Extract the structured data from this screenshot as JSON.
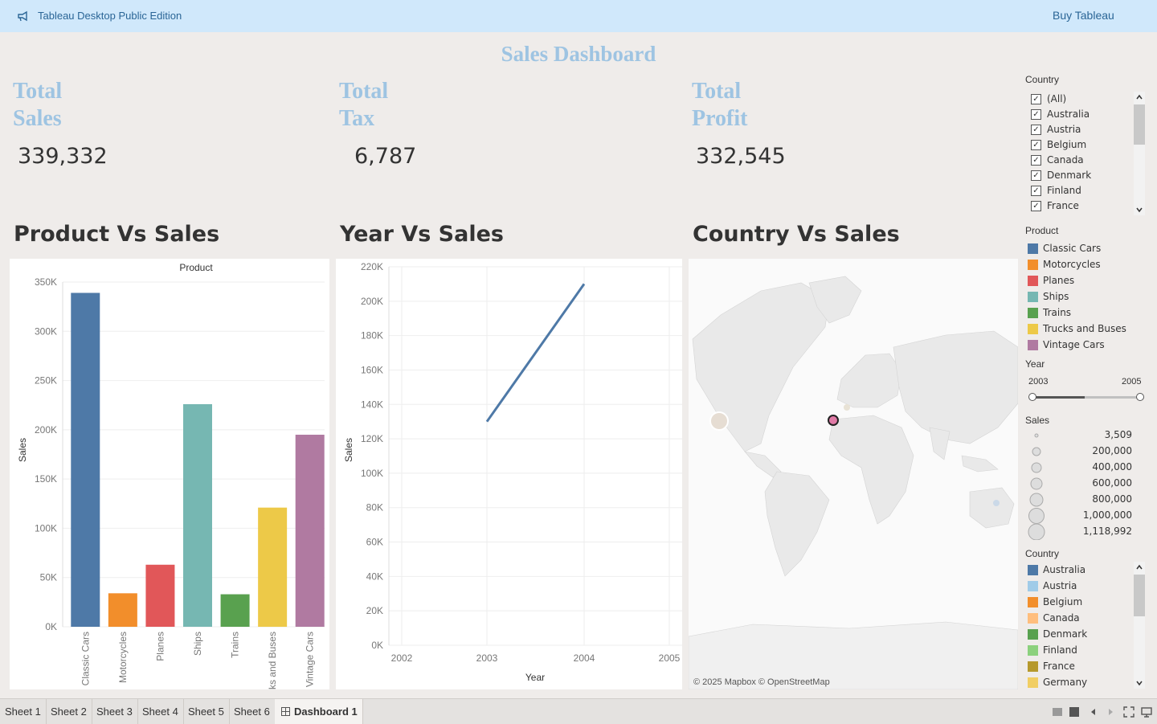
{
  "app": {
    "title": "Tableau Desktop Public Edition",
    "buy_label": "Buy Tableau"
  },
  "dashboard": {
    "title": "Sales Dashboard"
  },
  "kpis": [
    {
      "label_line1": "Total",
      "label_line2": "Sales",
      "value": "339,332"
    },
    {
      "label_line1": "Total",
      "label_line2": "Tax",
      "value": "6,787"
    },
    {
      "label_line1": "Total",
      "label_line2": "Profit",
      "value": "332,545"
    }
  ],
  "sections": {
    "product": "Product Vs Sales",
    "year": "Year Vs Sales",
    "country": "Country Vs Sales"
  },
  "chart_data": [
    {
      "type": "bar",
      "title": "Product",
      "xlabel": "",
      "ylabel": "Sales",
      "ylim": [
        0,
        350000
      ],
      "yticks": [
        "0K",
        "50K",
        "100K",
        "150K",
        "200K",
        "250K",
        "300K",
        "350K"
      ],
      "categories": [
        "Classic Cars",
        "Motorcycles",
        "Planes",
        "Ships",
        "Trains",
        "Trucks and Buses",
        "Vintage Cars"
      ],
      "values": [
        339000,
        34000,
        63000,
        226000,
        33000,
        121000,
        195000
      ],
      "colors": [
        "#4e79a7",
        "#f28e2b",
        "#e15759",
        "#76b7b2",
        "#59a14f",
        "#edc948",
        "#b07aa1"
      ]
    },
    {
      "type": "line",
      "title": "",
      "xlabel": "Year",
      "ylabel": "Sales",
      "ylim": [
        0,
        220000
      ],
      "yticks": [
        "0K",
        "20K",
        "40K",
        "60K",
        "80K",
        "100K",
        "120K",
        "140K",
        "160K",
        "180K",
        "200K",
        "220K"
      ],
      "xticks": [
        "2002",
        "2003",
        "2004",
        "2005"
      ],
      "x": [
        2003,
        2004
      ],
      "values": [
        130000,
        210000
      ],
      "color": "#4e79a7"
    }
  ],
  "map": {
    "attribution": "© 2025 Mapbox © OpenStreetMap"
  },
  "filters": {
    "country": {
      "label": "Country",
      "items": [
        "(All)",
        "Australia",
        "Austria",
        "Belgium",
        "Canada",
        "Denmark",
        "Finland",
        "France"
      ]
    },
    "product_legend": {
      "label": "Product",
      "items": [
        {
          "name": "Classic Cars",
          "color": "#4e79a7"
        },
        {
          "name": "Motorcycles",
          "color": "#f28e2b"
        },
        {
          "name": "Planes",
          "color": "#e15759"
        },
        {
          "name": "Ships",
          "color": "#76b7b2"
        },
        {
          "name": "Trains",
          "color": "#59a14f"
        },
        {
          "name": "Trucks and Buses",
          "color": "#edc948"
        },
        {
          "name": "Vintage Cars",
          "color": "#b07aa1"
        }
      ]
    },
    "year": {
      "label": "Year",
      "min": "2003",
      "max": "2005"
    },
    "sales_size": {
      "label": "Sales",
      "items": [
        "3,509",
        "200,000",
        "400,000",
        "600,000",
        "800,000",
        "1,000,000",
        "1,118,992"
      ]
    },
    "country_legend": {
      "label": "Country",
      "items": [
        {
          "name": "Australia",
          "color": "#4e79a7"
        },
        {
          "name": "Austria",
          "color": "#a0cbe8"
        },
        {
          "name": "Belgium",
          "color": "#f28e2b"
        },
        {
          "name": "Canada",
          "color": "#ffbe7d"
        },
        {
          "name": "Denmark",
          "color": "#59a14f"
        },
        {
          "name": "Finland",
          "color": "#8cd17d"
        },
        {
          "name": "France",
          "color": "#b6992d"
        },
        {
          "name": "Germany",
          "color": "#f1ce63"
        }
      ]
    }
  },
  "tabs": [
    "Sheet 1",
    "Sheet 2",
    "Sheet 3",
    "Sheet 4",
    "Sheet 5",
    "Sheet 6",
    "Dashboard 1"
  ]
}
